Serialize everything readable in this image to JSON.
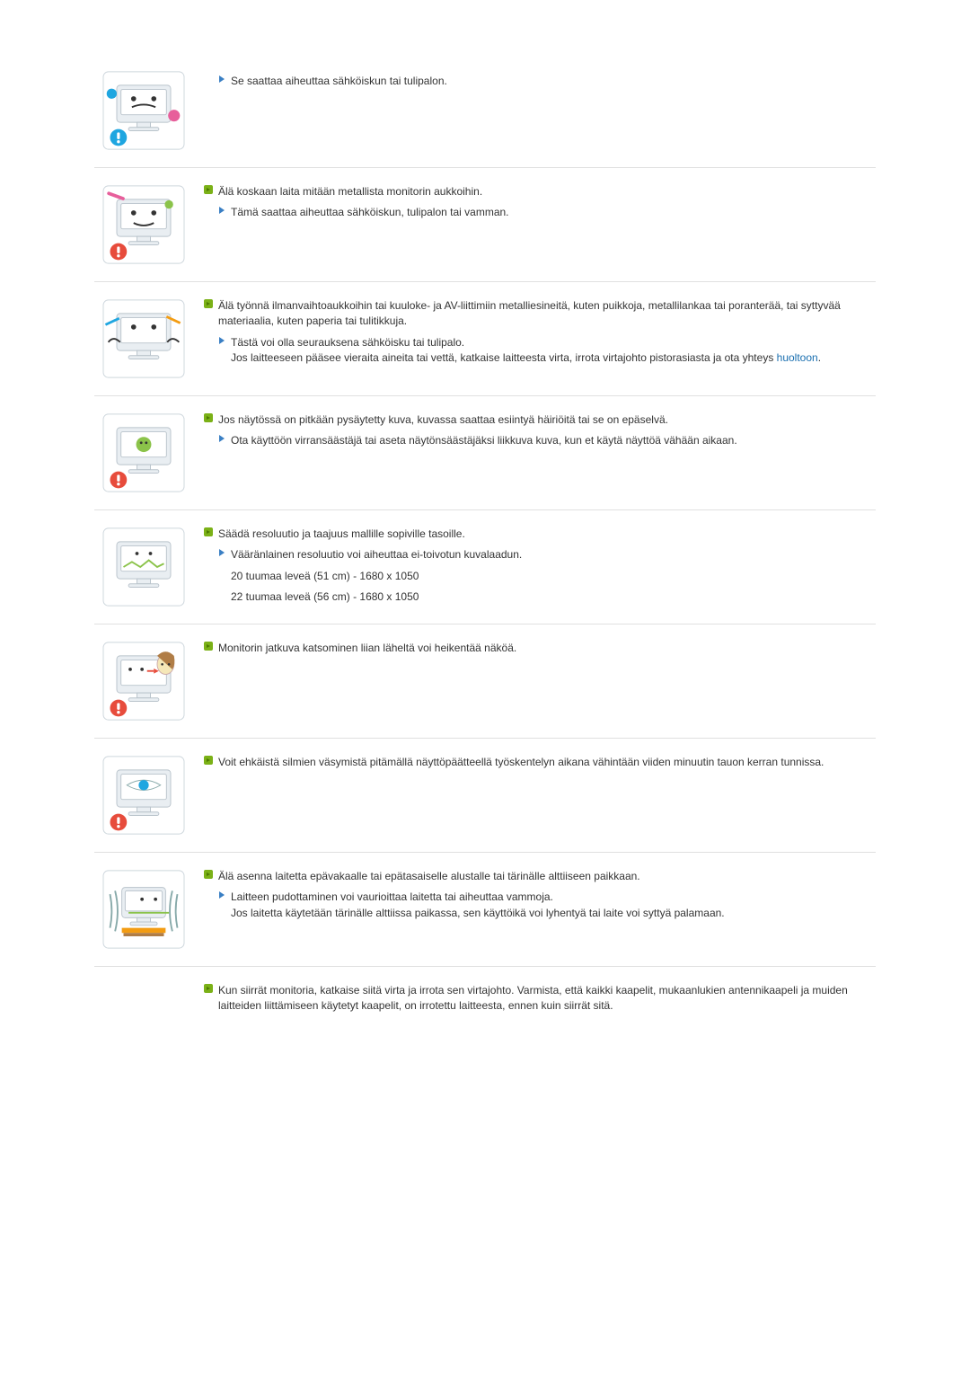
{
  "colors": {
    "text": "#333333",
    "link": "#1a6fb0",
    "divider": "#e0e0e0",
    "greenBullet": "#7bb117",
    "greenBulletDark": "#4d7a00",
    "blueArrow": "#3a7fc4",
    "iconBg": "#ffffff",
    "iconBorder": "#cdd6dc",
    "monitorBody": "#e9eef2",
    "monitorScreen": "#ffffff",
    "exclaimBlue": "#1fa6e0",
    "exclaimRed": "#e74c3c",
    "accentGreen": "#8bc34a",
    "accentPink": "#e75f9b",
    "accentOrange": "#f39c12",
    "accentBrown": "#b07d46",
    "faceYellow": "#f5e7b8"
  },
  "sections": [
    {
      "id": "s1",
      "thumb": "monitor-face-warning",
      "exclaim": "blue",
      "heading": null,
      "subs": [
        {
          "text": "Se saattaa aiheuttaa sähköiskun tai tulipalon."
        }
      ]
    },
    {
      "id": "s2",
      "thumb": "monitor-insert-object",
      "exclaim": "red",
      "heading": "Älä koskaan laita mitään metallista monitorin aukkoihin.",
      "subs": [
        {
          "text": "Tämä saattaa aiheuttaa sähköiskun, tulipalon tai vamman."
        }
      ]
    },
    {
      "id": "s3",
      "thumb": "monitor-vents-tools",
      "exclaim": null,
      "heading": "Älä työnnä ilmanvaihtoaukkoihin tai kuuloke- ja AV-liittimiin metalliesineitä, kuten puikkoja, metallilankaa tai poranterää, tai syttyvää materiaalia, kuten paperia tai tulitikkuja.",
      "subs": [
        {
          "text": "Tästä voi olla seurauksena sähköisku tai tulipalo.",
          "cont": "Jos laitteeseen pääsee vieraita aineita tai vettä, katkaise laitteesta virta, irrota virtajohto pistorasiasta ja ota yhteys ",
          "link": "huoltoon",
          "contAfter": "."
        }
      ]
    },
    {
      "id": "s4",
      "thumb": "monitor-still-image",
      "exclaim": "red",
      "heading": "Jos näytössä on pitkään pysäytetty kuva, kuvassa saattaa esiintyä häiriöitä tai se on epäselvä.",
      "subs": [
        {
          "text": "Ota käyttöön virransäästäjä tai aseta näytönsäästäjäksi liikkuva kuva, kun et käytä näyttöä vähään aikaan."
        }
      ]
    },
    {
      "id": "s5",
      "thumb": "monitor-resolution",
      "exclaim": null,
      "heading": "Säädä resoluutio ja taajuus mallille sopiville tasoille.",
      "subs": [
        {
          "text": "Vääränlainen resoluutio voi aiheuttaa ei-toivotun kuvalaadun."
        }
      ],
      "extra": [
        "20 tuumaa leveä (51 cm) - 1680 x 1050",
        "22 tuumaa leveä (56 cm) - 1680 x 1050"
      ]
    },
    {
      "id": "s6",
      "thumb": "monitor-close-viewer",
      "exclaim": "red",
      "heading": "Monitorin jatkuva katsominen liian läheltä voi heikentää näköä.",
      "subs": []
    },
    {
      "id": "s7",
      "thumb": "monitor-eye-rest",
      "exclaim": "red",
      "heading": "Voit ehkäistä silmien väsymistä pitämällä näyttöpäätteellä työskentelyn aikana vähintään viiden minuutin tauon kerran tunnissa.",
      "subs": []
    },
    {
      "id": "s8",
      "thumb": "monitor-unstable",
      "exclaim": null,
      "heading": "Älä asenna laitetta epävakaalle tai epätasaiselle alustalle tai tärinälle alttiiseen paikkaan.",
      "subs": [
        {
          "text": "Laitteen pudottaminen voi vaurioittaa laitetta tai aiheuttaa vammoja.",
          "cont": "Jos laitetta käytetään tärinälle alttiissa paikassa, sen käyttöikä voi lyhentyä tai laite voi syttyä palamaan."
        }
      ]
    },
    {
      "id": "s9",
      "thumb": null,
      "exclaim": null,
      "heading": "Kun siirrät monitoria, katkaise siitä virta ja irrota sen virtajohto. Varmista, että kaikki kaapelit, mukaanlukien antennikaapeli ja muiden laitteiden liittämiseen käytetyt kaapelit, on irrotettu laitteesta, ennen kuin siirrät sitä.",
      "subs": []
    }
  ]
}
